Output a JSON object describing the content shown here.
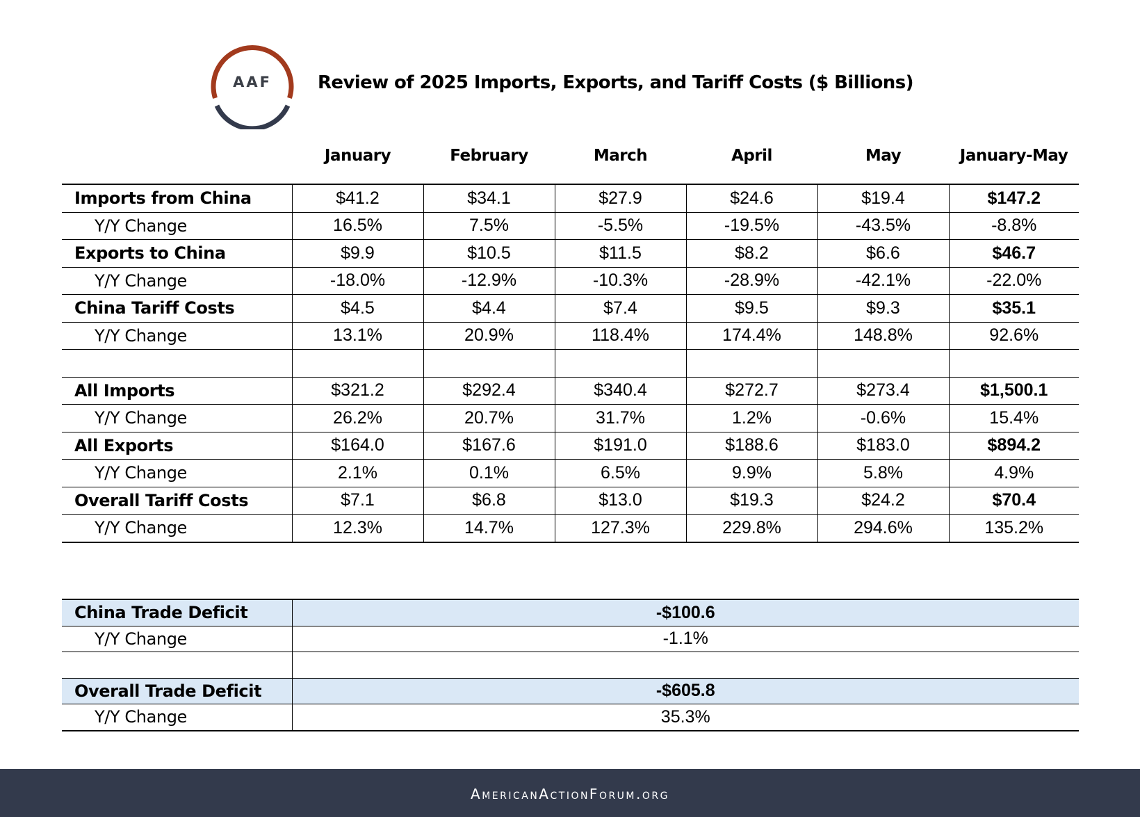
{
  "logo": {
    "text": "AAF",
    "colors": {
      "top_arc": "#a23a1d",
      "bottom_arc": "#333a4c"
    }
  },
  "title": "Review of 2025 Imports, Exports, and Tariff Costs ($ Billions)",
  "columns": [
    "January",
    "February",
    "March",
    "April",
    "May",
    "January-May"
  ],
  "main_table": {
    "rows": [
      {
        "label": "Imports from China",
        "type": "metric",
        "values": [
          "$41.2",
          "$34.1",
          "$27.9",
          "$24.6",
          "$19.4",
          "$147.2"
        ]
      },
      {
        "label": "Y/Y Change",
        "type": "change",
        "values": [
          "16.5%",
          "7.5%",
          "-5.5%",
          "-19.5%",
          "-43.5%",
          "-8.8%"
        ]
      },
      {
        "label": "Exports to China",
        "type": "metric",
        "values": [
          "$9.9",
          "$10.5",
          "$11.5",
          "$8.2",
          "$6.6",
          "$46.7"
        ]
      },
      {
        "label": "Y/Y Change",
        "type": "change",
        "values": [
          "-18.0%",
          "-12.9%",
          "-10.3%",
          "-28.9%",
          "-42.1%",
          "-22.0%"
        ]
      },
      {
        "label": "China Tariff Costs",
        "type": "metric",
        "values": [
          "$4.5",
          "$4.4",
          "$7.4",
          "$9.5",
          "$9.3",
          "$35.1"
        ]
      },
      {
        "label": "Y/Y Change",
        "type": "change",
        "values": [
          "13.1%",
          "20.9%",
          "118.4%",
          "174.4%",
          "148.8%",
          "92.6%"
        ]
      },
      {
        "label": "",
        "type": "spacer",
        "values": [
          "",
          "",
          "",
          "",
          "",
          ""
        ]
      },
      {
        "label": "All Imports",
        "type": "metric",
        "values": [
          "$321.2",
          "$292.4",
          "$340.4",
          "$272.7",
          "$273.4",
          "$1,500.1"
        ]
      },
      {
        "label": "Y/Y Change",
        "type": "change",
        "values": [
          "26.2%",
          "20.7%",
          "31.7%",
          "1.2%",
          "-0.6%",
          "15.4%"
        ]
      },
      {
        "label": "All Exports",
        "type": "metric",
        "values": [
          "$164.0",
          "$167.6",
          "$191.0",
          "$188.6",
          "$183.0",
          "$894.2"
        ]
      },
      {
        "label": "Y/Y Change",
        "type": "change",
        "values": [
          "2.1%",
          "0.1%",
          "6.5%",
          "9.9%",
          "5.8%",
          "4.9%"
        ]
      },
      {
        "label": "Overall Tariff Costs",
        "type": "metric",
        "values": [
          "$7.1",
          "$6.8",
          "$13.0",
          "$19.3",
          "$24.2",
          "$70.4"
        ]
      },
      {
        "label": "Y/Y Change",
        "type": "change",
        "values": [
          "12.3%",
          "14.7%",
          "127.3%",
          "229.8%",
          "294.6%",
          "135.2%"
        ]
      }
    ]
  },
  "deficit_table": {
    "highlight_color": "#dae8f6",
    "rows": [
      {
        "label": "China Trade Deficit",
        "type": "metric",
        "value": "-$100.6"
      },
      {
        "label": "Y/Y Change",
        "type": "change",
        "value": "-1.1%"
      },
      {
        "label": "",
        "type": "spacer",
        "value": ""
      },
      {
        "label": "Overall Trade Deficit",
        "type": "metric",
        "value": "-$605.8"
      },
      {
        "label": "Y/Y Change",
        "type": "change",
        "value": "35.3%"
      }
    ]
  },
  "footer": {
    "text": "AmericanActionForum.org",
    "background": "#333a4c"
  }
}
